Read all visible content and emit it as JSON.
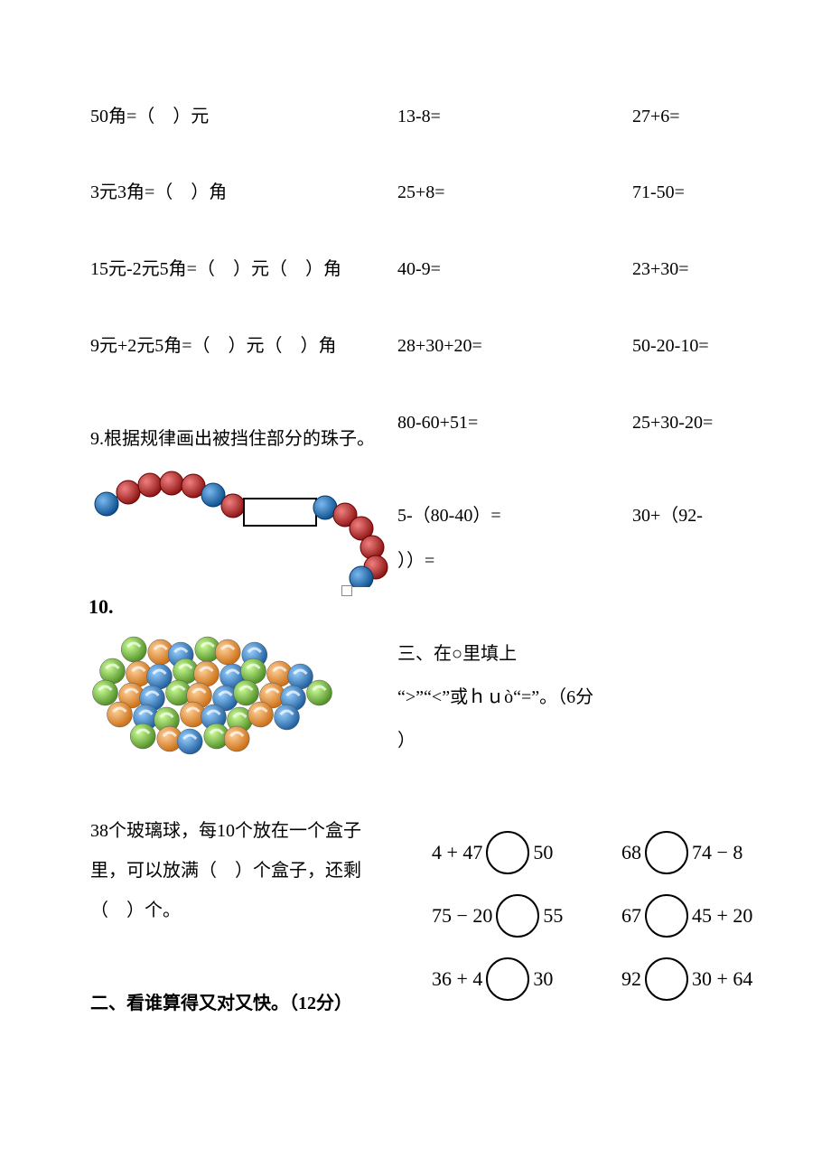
{
  "colors": {
    "background": "#ffffff",
    "text": "#000000",
    "bead_red": "#b02020",
    "bead_red_stroke": "#6a0000",
    "bead_blue": "#1a6fbf",
    "bead_blue_stroke": "#003a70",
    "marble_green": "#6db33f",
    "marble_orange": "#e98b2a",
    "marble_blue": "#2e7fc1",
    "circle_border": "#000000"
  },
  "money": {
    "r1": "50角=（ ）元",
    "r2": "3元3角=（ ）角",
    "r3": "15元-2元5角=（ ）元（ ）角",
    "r4": "9元+2元5角=（ ）元（ ）角"
  },
  "calc_mid": {
    "r1": "13-8=",
    "r2": "25+8=",
    "r3": "40-9=",
    "r4": "28+30+20=",
    "r5": "80-60+51=",
    "r6a": "5-（80-40）=",
    "r6b": "））="
  },
  "calc_right": {
    "r1": "27+6=",
    "r2": "71-50=",
    "r3": "23+30=",
    "r4": "50-20-10=",
    "r5": "25+30-20=",
    "r6": "30+（92-"
  },
  "q9": {
    "label": "9.根据规律画出被挡住部分的珠子。",
    "bead_sequence": [
      "blue",
      "red",
      "red",
      "red",
      "red",
      "blue",
      "red",
      "gap",
      "gap",
      "gap",
      "gap",
      "blue",
      "red",
      "red",
      "red",
      "red",
      "blue"
    ],
    "bead_radius": 13
  },
  "q10": {
    "label": "10.",
    "marble_count": 38,
    "marble_colors": [
      "green",
      "orange",
      "blue"
    ],
    "text": "38个玻璃球，每10个放在一个盒子里，可以放满（ ）个盒子，还剩（ ）个。"
  },
  "section2": {
    "title": "二、看谁算得又对又快。（12分）"
  },
  "section3": {
    "line1": "三、在○里填上",
    "line2": "“>”“<”或ｈｕò“=”。（6分",
    "line3": "）",
    "points": 6,
    "rows": [
      {
        "left_a": "4 + 47",
        "left_b": "50",
        "right_a": "68",
        "right_b": "74 − 8"
      },
      {
        "left_a": "75 − 20",
        "left_b": "55",
        "right_a": "67",
        "right_b": "45 + 20"
      },
      {
        "left_a": "36 + 4",
        "left_b": "30",
        "right_a": "92",
        "right_b": "30 + 64"
      }
    ]
  }
}
